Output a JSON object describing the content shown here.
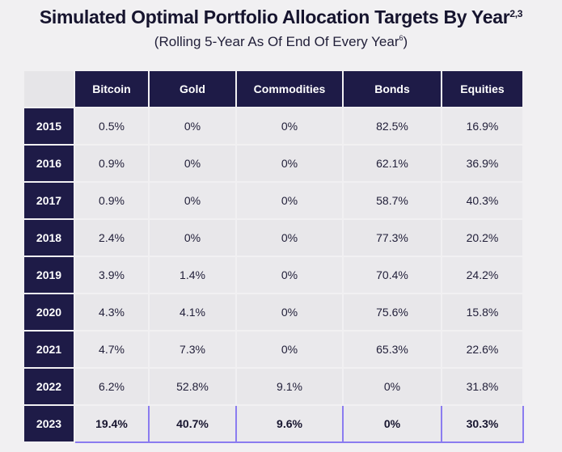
{
  "title": "Simulated Optimal Portfolio Allocation Targets By Year",
  "title_sup": "2,3",
  "subtitle": "(Rolling 5-Year As Of End Of Every Year",
  "subtitle_sup": "6",
  "subtitle_end": ")",
  "columns": [
    "Bitcoin",
    "Gold",
    "Commodities",
    "Bonds",
    "Equities"
  ],
  "rows": [
    {
      "year": "2015",
      "values": [
        "0.5%",
        "0%",
        "0%",
        "82.5%",
        "16.9%"
      ]
    },
    {
      "year": "2016",
      "values": [
        "0.9%",
        "0%",
        "0%",
        "62.1%",
        "36.9%"
      ]
    },
    {
      "year": "2017",
      "values": [
        "0.9%",
        "0%",
        "0%",
        "58.7%",
        "40.3%"
      ]
    },
    {
      "year": "2018",
      "values": [
        "2.4%",
        "0%",
        "0%",
        "77.3%",
        "20.2%"
      ]
    },
    {
      "year": "2019",
      "values": [
        "3.9%",
        "1.4%",
        "0%",
        "70.4%",
        "24.2%"
      ]
    },
    {
      "year": "2020",
      "values": [
        "4.3%",
        "4.1%",
        "0%",
        "75.6%",
        "15.8%"
      ]
    },
    {
      "year": "2021",
      "values": [
        "4.7%",
        "7.3%",
        "0%",
        "65.3%",
        "22.6%"
      ]
    },
    {
      "year": "2022",
      "values": [
        "6.2%",
        "52.8%",
        "9.1%",
        "0%",
        "31.8%"
      ]
    },
    {
      "year": "2023",
      "values": [
        "19.4%",
        "40.7%",
        "9.6%",
        "0%",
        "30.3%"
      ]
    }
  ],
  "colors": {
    "header": "#1e1b47",
    "highlight_border": "#8b7cf0"
  }
}
